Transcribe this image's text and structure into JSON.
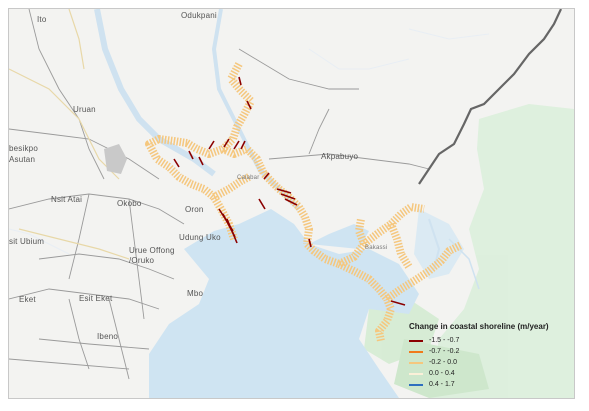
{
  "map": {
    "places": [
      {
        "id": "ito",
        "label": "Ito"
      },
      {
        "id": "odukpani",
        "label": "Odukpani"
      },
      {
        "id": "uruan",
        "label": "Uruan"
      },
      {
        "id": "nsit-atai",
        "label": "Nsit Atai"
      },
      {
        "id": "okobo",
        "label": "Okobo"
      },
      {
        "id": "oron",
        "label": "Oron"
      },
      {
        "id": "udung-uko",
        "label": "Udung Uko"
      },
      {
        "id": "urue-offong-oruko",
        "label": "Urue Offong\n/Oruko"
      },
      {
        "id": "nsit-ubium",
        "label": "sit Ubium"
      },
      {
        "id": "esit-eket",
        "label": "Esit Eket"
      },
      {
        "id": "eket",
        "label": "Eket"
      },
      {
        "id": "mbo",
        "label": "Mbo"
      },
      {
        "id": "ibeno",
        "label": "Ibeno"
      },
      {
        "id": "akpabuyo",
        "label": "Akpabuyo"
      },
      {
        "id": "ibesikpo-asutan",
        "label": "besikpo\nAsutan"
      },
      {
        "id": "calabar",
        "label": "Calabar"
      },
      {
        "id": "bakassi",
        "label": "Bakassi"
      }
    ]
  },
  "legend": {
    "title": "Change in coastal shoreline (m/year)",
    "classes": [
      {
        "label": "-1.5 - -0.7",
        "color": "#8b0000"
      },
      {
        "label": "-0.7 - -0.2",
        "color": "#f07a1a"
      },
      {
        "label": "-0.2 - 0.0",
        "color": "#f5c77e"
      },
      {
        "label": "0.0 - 0.4",
        "color": "#fbf0d8"
      },
      {
        "label": "0.4 - 1.7",
        "color": "#2f6fbf"
      }
    ]
  }
}
